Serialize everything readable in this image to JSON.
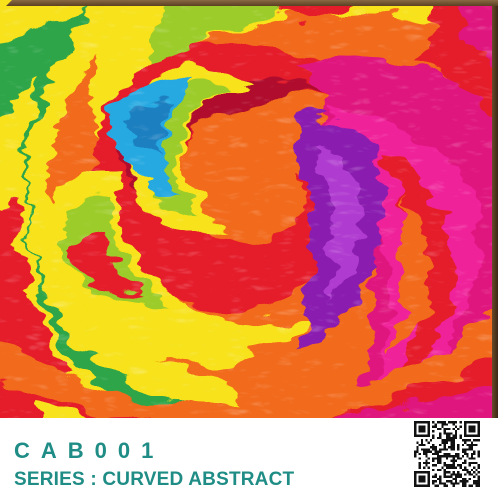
{
  "product": {
    "code": "CAB001",
    "series_label": "SERIES : CURVED ABSTRACT"
  },
  "artwork": {
    "style": "curved abstract swirl",
    "colors": {
      "magenta": "#e0137f",
      "pink": "#f0209a",
      "purple": "#8a1fb0",
      "red": "#e51e2a",
      "crimson": "#b0102e",
      "orange": "#f26a1b",
      "yellow": "#f7e21a",
      "lime": "#9ccc2a",
      "green": "#2ea54a",
      "cyan": "#27a9e1"
    }
  },
  "qr": {
    "icon": "qr-code-icon"
  },
  "theme": {
    "text_color": "#1f8d86",
    "frame_edge": "#4a3219"
  }
}
